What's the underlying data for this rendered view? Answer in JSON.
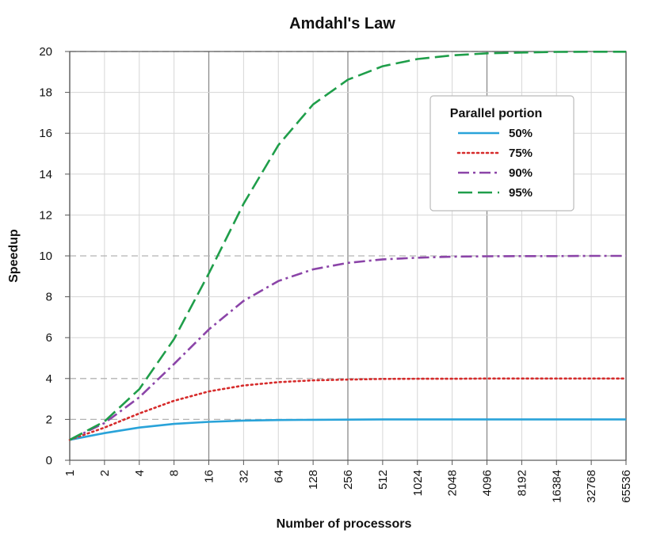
{
  "chart_data": {
    "type": "line",
    "title": "Amdahl's Law",
    "xlabel": "Number of processors",
    "ylabel": "Speedup",
    "x_scale": "log2",
    "x": [
      1,
      2,
      4,
      8,
      16,
      32,
      64,
      128,
      256,
      512,
      1024,
      2048,
      4096,
      8192,
      16384,
      32768,
      65536
    ],
    "x_tick_labels": [
      "1",
      "2",
      "4",
      "8",
      "16",
      "32",
      "64",
      "128",
      "256",
      "512",
      "1024",
      "2048",
      "4096",
      "8192",
      "16384",
      "32768",
      "65536"
    ],
    "ylim": [
      0,
      20
    ],
    "y_ticks": [
      0,
      2,
      4,
      6,
      8,
      10,
      12,
      14,
      16,
      18,
      20
    ],
    "grid": true,
    "legend": {
      "title": "Parallel portion",
      "placement": "top-right"
    },
    "series": [
      {
        "name": "50%",
        "color": "#29a3d9",
        "dash": "solid",
        "values": [
          1.0,
          1.33,
          1.6,
          1.78,
          1.88,
          1.94,
          1.97,
          1.98,
          1.99,
          2.0,
          2.0,
          2.0,
          2.0,
          2.0,
          2.0,
          2.0,
          2.0
        ]
      },
      {
        "name": "75%",
        "color": "#d62b2b",
        "dash": "dotted",
        "values": [
          1.0,
          1.6,
          2.29,
          2.91,
          3.37,
          3.66,
          3.82,
          3.91,
          3.95,
          3.98,
          3.99,
          3.99,
          4.0,
          4.0,
          4.0,
          4.0,
          4.0
        ]
      },
      {
        "name": "90%",
        "color": "#8b44a8",
        "dash": "dashdot",
        "values": [
          1.0,
          1.82,
          3.08,
          4.71,
          6.4,
          7.8,
          8.77,
          9.34,
          9.66,
          9.83,
          9.91,
          9.96,
          9.98,
          9.99,
          9.99,
          10.0,
          10.0
        ]
      },
      {
        "name": "95%",
        "color": "#1f9e4a",
        "dash": "dashed",
        "values": [
          1.0,
          1.9,
          3.48,
          5.93,
          9.14,
          12.55,
          15.42,
          17.41,
          18.62,
          19.28,
          19.63,
          19.81,
          19.91,
          19.95,
          19.98,
          19.99,
          19.99
        ]
      }
    ]
  }
}
